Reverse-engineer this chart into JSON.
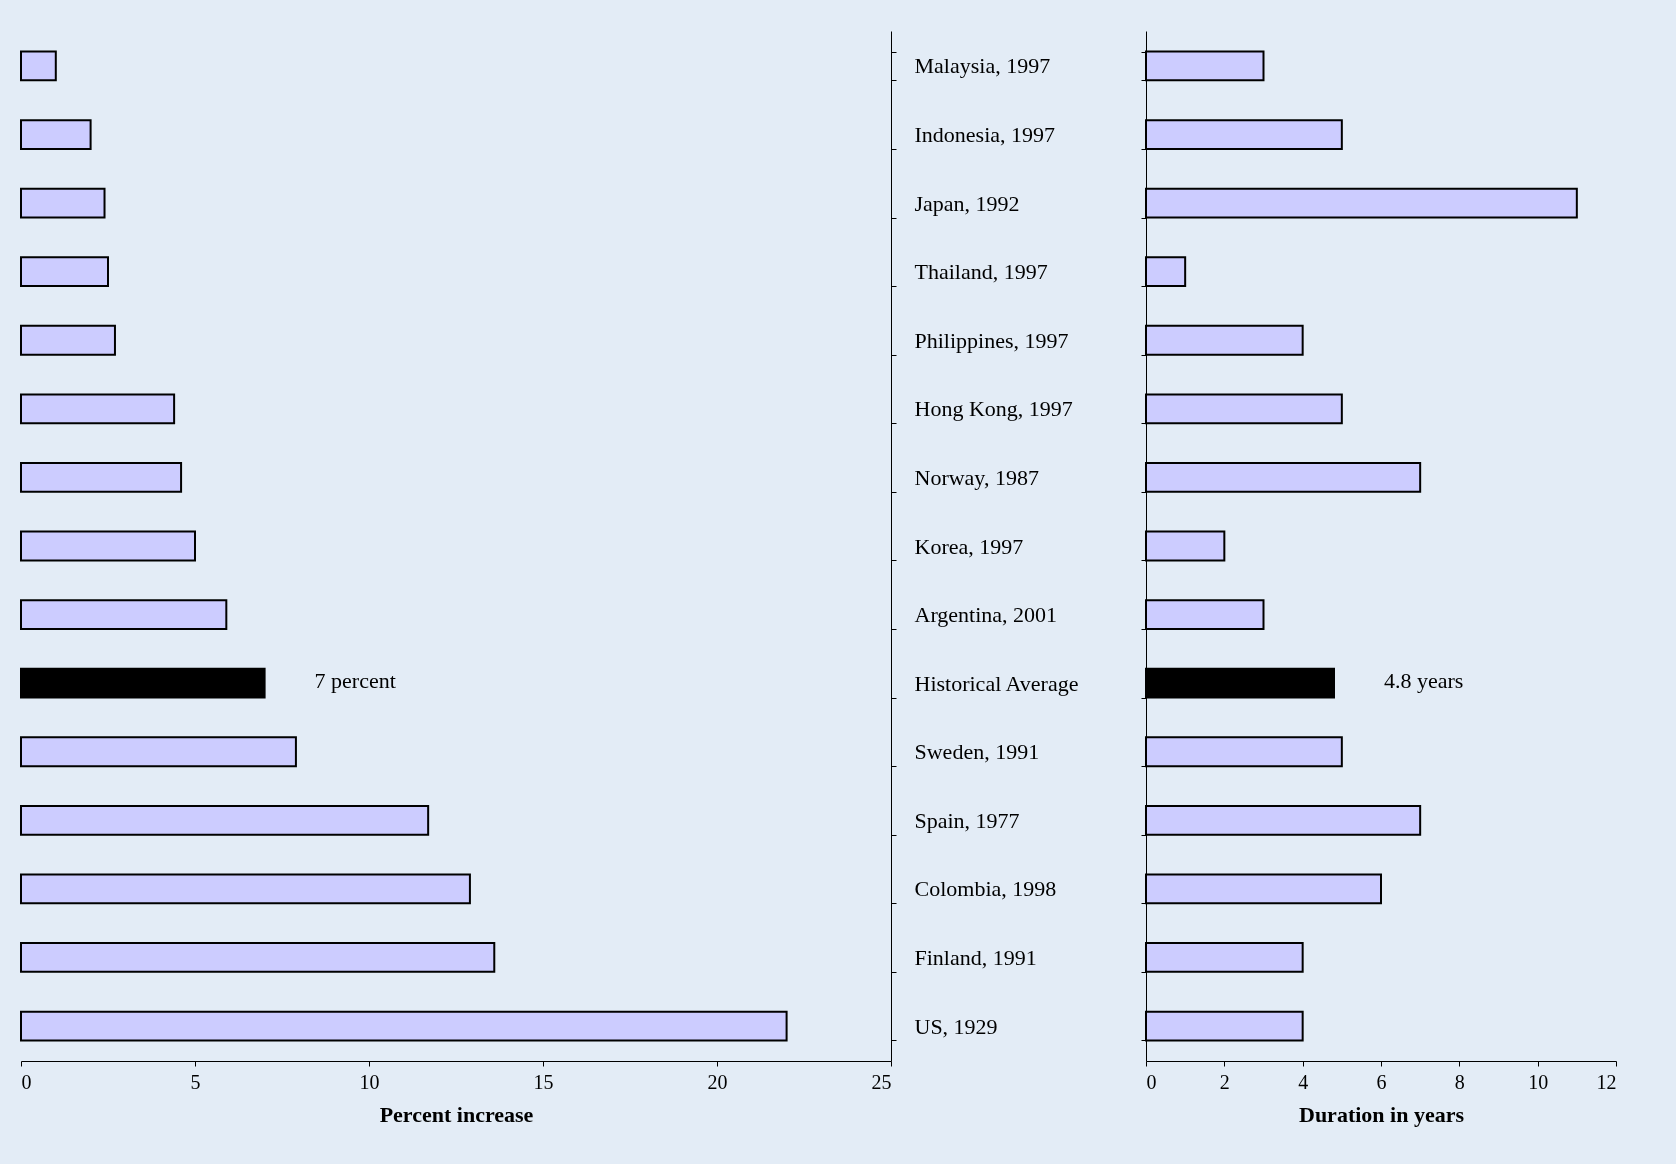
{
  "chart_data": [
    {
      "type": "bar",
      "orientation": "horizontal",
      "xlabel": "Percent increase",
      "categories": [
        "Malaysia, 1997",
        "Indonesia, 1997",
        "Japan, 1992",
        "Thailand, 1997",
        "Philippines, 1997",
        "Hong Kong, 1997",
        "Norway, 1987",
        "Korea, 1997",
        "Argentina, 2001",
        "Historical Average",
        "Sweden, 1991",
        "Spain, 1977",
        "Colombia, 1998",
        "Finland, 1991",
        "US, 1929"
      ],
      "values": [
        1.0,
        2.0,
        2.4,
        2.5,
        2.7,
        4.4,
        4.6,
        5.0,
        5.9,
        7.0,
        7.9,
        11.7,
        12.9,
        13.6,
        22.0
      ],
      "colors": [
        "#ccccff",
        "#ccccff",
        "#ccccff",
        "#ccccff",
        "#ccccff",
        "#ccccff",
        "#ccccff",
        "#ccccff",
        "#ccccff",
        "#000000",
        "#ccccff",
        "#ccccff",
        "#ccccff",
        "#ccccff",
        "#ccccff"
      ],
      "xlim": [
        0,
        25
      ],
      "xticks": [
        0,
        5,
        10,
        15,
        20,
        25
      ],
      "grid": false,
      "annotations": [
        {
          "text": "7 percent",
          "x": 7,
          "y": "Historical Average"
        }
      ]
    },
    {
      "type": "bar",
      "orientation": "horizontal",
      "xlabel": "Duration in years",
      "tick_labels": "x",
      "categories": [
        "Malaysia, 1997",
        "Indonesia, 1997",
        "Japan, 1992",
        "Thailand, 1997",
        "Philippines, 1997",
        "Hong Kong, 1997",
        "Norway, 1987",
        "Korea, 1997",
        "Argentina, 2001",
        "Historical Average",
        "Sweden, 1991",
        "Spain, 1977",
        "Colombia, 1998",
        "Finland, 1991",
        "US, 1929"
      ],
      "values": [
        3,
        5,
        11,
        1,
        4,
        5,
        7,
        2,
        3,
        4.8,
        5,
        7,
        6,
        4,
        4
      ],
      "colors": [
        "#ccccff",
        "#ccccff",
        "#ccccff",
        "#ccccff",
        "#ccccff",
        "#ccccff",
        "#ccccff",
        "#ccccff",
        "#ccccff",
        "#000000",
        "#ccccff",
        "#ccccff",
        "#ccccff",
        "#ccccff",
        "#ccccff"
      ],
      "xlim": [
        0,
        12
      ],
      "xticks": [
        0,
        2,
        4,
        6,
        8,
        10,
        12
      ],
      "grid": false,
      "annotations": [
        {
          "text": "4.8 years",
          "x": 4.8,
          "y": "Historical Average"
        }
      ]
    }
  ]
}
